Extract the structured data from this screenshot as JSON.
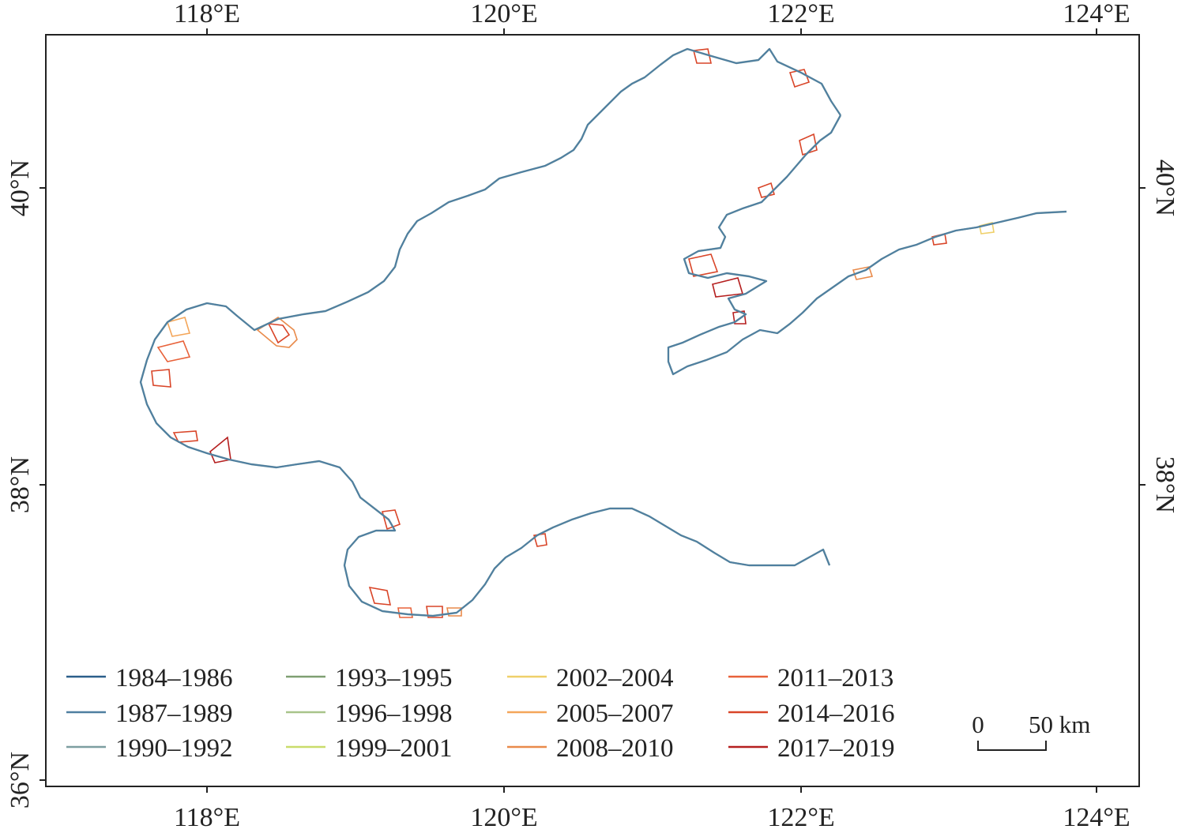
{
  "axes": {
    "top_lon_labels": [
      "118°E",
      "120°E",
      "122°E",
      "124°E"
    ],
    "bottom_lon_labels": [
      "118°E",
      "120°E",
      "122°E",
      "124°E"
    ],
    "left_lat_labels": [
      "40°N",
      "38°N",
      "36°N"
    ],
    "right_lat_labels": [
      "40°N",
      "38°N"
    ]
  },
  "legend": {
    "items": [
      {
        "label": "1984–1986",
        "color": "#2b5f8a"
      },
      {
        "label": "1987–1989",
        "color": "#4f7fa0"
      },
      {
        "label": "1990–1992",
        "color": "#7d9ea0"
      },
      {
        "label": "1993–1995",
        "color": "#7f9f72"
      },
      {
        "label": "1996–1998",
        "color": "#a8c48a"
      },
      {
        "label": "1999–2001",
        "color": "#c9dc6a"
      },
      {
        "label": "2002–2004",
        "color": "#efd06a"
      },
      {
        "label": "2005–2007",
        "color": "#f4a65a"
      },
      {
        "label": "2008–2010",
        "color": "#e98a4a"
      },
      {
        "label": "2011–2013",
        "color": "#e8623a"
      },
      {
        "label": "2014–2016",
        "color": "#d94528"
      },
      {
        "label": "2017–2019",
        "color": "#b51f1f"
      }
    ]
  },
  "scale_bar": {
    "start_label": "0",
    "end_label": "50 km"
  },
  "colors": {
    "coast_main": "#4f7fa0",
    "coast_dark": "#2b5f8a",
    "reclaim_red": "#d94528",
    "reclaim_orange": "#f4a65a",
    "reclaim_yellow": "#efd06a"
  }
}
